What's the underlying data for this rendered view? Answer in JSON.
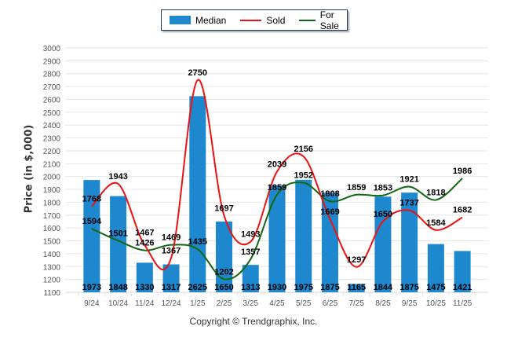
{
  "legend": {
    "items": [
      {
        "label": "Median",
        "kind": "bar",
        "color": "#1e88cf"
      },
      {
        "label": "Sold",
        "kind": "line",
        "color": "#ee1111"
      },
      {
        "label": "For Sale",
        "kind": "line",
        "color": "#116611"
      }
    ]
  },
  "copyright": "Copyright © Trendgraphix, Inc.",
  "chart_data": {
    "type": "bar",
    "title": "",
    "xlabel": "",
    "ylabel": "Price (in $,000)",
    "ylim": [
      1100,
      3000
    ],
    "yticks": [
      1100,
      1200,
      1300,
      1400,
      1500,
      1600,
      1700,
      1800,
      1900,
      2000,
      2100,
      2200,
      2300,
      2400,
      2500,
      2600,
      2700,
      2800,
      2900,
      3000
    ],
    "grid": true,
    "legend_position": "top-center",
    "categories": [
      "9/24",
      "10/24",
      "11/24",
      "12/24",
      "1/25",
      "2/25",
      "3/25",
      "4/25",
      "5/25",
      "6/25",
      "7/25",
      "8/25",
      "9/25",
      "10/25",
      "11/25"
    ],
    "series": [
      {
        "name": "Median",
        "type": "bar",
        "color": "#1e88cf",
        "values": [
          1973,
          1848,
          1330,
          1317,
          2625,
          1650,
          1313,
          1930,
          1975,
          1875,
          1165,
          1844,
          1875,
          1475,
          1421
        ]
      },
      {
        "name": "Sold",
        "type": "line",
        "color": "#ee1111",
        "values": [
          1768,
          1943,
          1467,
          1367,
          2750,
          1697,
          1493,
          2039,
          2156,
          1669,
          1297,
          1650,
          1737,
          1584,
          1682
        ]
      },
      {
        "name": "For Sale",
        "type": "line",
        "color": "#116611",
        "values": [
          1594,
          1501,
          1426,
          1469,
          1435,
          1202,
          1357,
          1859,
          1952,
          1808,
          1859,
          1853,
          1921,
          1818,
          1986
        ]
      }
    ]
  }
}
